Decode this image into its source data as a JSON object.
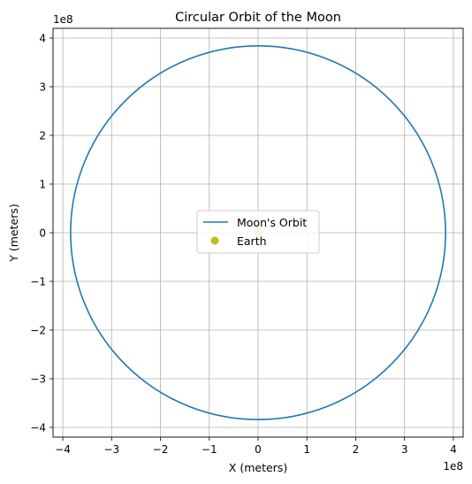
{
  "chart_data": {
    "type": "line",
    "title": "Circular Orbit of the Moon",
    "xlabel": "X (meters)",
    "ylabel": "Y (meters)",
    "x_offset_text": "1e8",
    "y_offset_text": "1e8",
    "xlim": [
      -4.2,
      4.2
    ],
    "ylim": [
      -4.2,
      4.2
    ],
    "xticks": [
      -4,
      -3,
      -2,
      -1,
      0,
      1,
      2,
      3,
      4
    ],
    "yticks": [
      -4,
      -3,
      -2,
      -1,
      0,
      1,
      2,
      3,
      4
    ],
    "xtick_labels": [
      "−4",
      "−3",
      "−2",
      "−1",
      "0",
      "1",
      "2",
      "3",
      "4"
    ],
    "ytick_labels": [
      "−4",
      "−3",
      "−2",
      "−1",
      "0",
      "1",
      "2",
      "3",
      "4"
    ],
    "grid": true,
    "legend_placement": "center",
    "series": [
      {
        "name": "Moon's Orbit",
        "kind": "line",
        "shape": "circle",
        "center": [
          0,
          0
        ],
        "radius": 3.84,
        "color": "#1f77b4"
      },
      {
        "name": "Earth",
        "kind": "marker",
        "x": [
          0
        ],
        "y": [
          0
        ],
        "color": "#bcbd22"
      }
    ]
  }
}
